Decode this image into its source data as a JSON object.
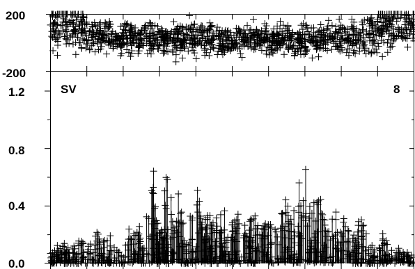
{
  "chart_data": [
    {
      "type": "scatter",
      "title": "",
      "xlabel": "",
      "ylabel": "",
      "ylim": [
        -200,
        200
      ],
      "ytick_labels": [
        "200",
        "-200"
      ],
      "yticks": [
        200,
        -200
      ],
      "xlim": [
        0,
        1000
      ],
      "xticks": [
        100,
        200,
        300,
        400,
        500,
        600,
        700,
        800,
        900
      ],
      "marker": "plus",
      "color": "#000000",
      "series": [
        {
          "x": [
            0,
            10,
            20,
            30,
            40,
            50,
            60,
            70,
            80,
            90,
            100,
            120,
            140,
            160,
            180,
            200,
            220,
            240,
            260,
            280,
            300,
            320,
            340,
            360,
            380,
            400,
            420,
            440,
            460,
            480,
            500,
            520,
            540,
            560,
            580,
            600,
            620,
            640,
            660,
            680,
            700,
            720,
            740,
            760,
            780,
            800,
            820,
            840,
            860,
            880,
            900,
            920,
            940,
            960,
            980,
            1000
          ],
          "y": [
            150,
            120,
            90,
            160,
            130,
            100,
            140,
            110,
            80,
            130,
            60,
            40,
            30,
            50,
            20,
            40,
            30,
            10,
            40,
            20,
            30,
            10,
            40,
            20,
            50,
            30,
            10,
            40,
            20,
            30,
            10,
            30,
            20,
            40,
            20,
            10,
            30,
            40,
            20,
            10,
            30,
            20,
            10,
            40,
            20,
            30,
            20,
            40,
            30,
            60,
            90,
            140,
            120,
            150,
            130,
            160
          ],
          "spread": [
            180,
            180,
            180,
            180,
            180,
            180,
            180,
            180,
            180,
            160,
            140,
            120,
            100,
            110,
            90,
            110,
            100,
            80,
            120,
            100,
            110,
            90,
            130,
            100,
            120,
            120,
            100,
            120,
            100,
            100,
            90,
            100,
            90,
            120,
            100,
            90,
            100,
            110,
            100,
            90,
            110,
            100,
            100,
            120,
            100,
            110,
            100,
            120,
            110,
            140,
            160,
            180,
            180,
            180,
            180,
            180
          ]
        }
      ]
    },
    {
      "type": "line",
      "title": "",
      "xlabel": "",
      "ylabel": "",
      "ylim": [
        0,
        1.3
      ],
      "yticks": [
        0.0,
        0.4,
        0.8,
        1.2
      ],
      "ytick_labels": [
        "0.0",
        "0.4",
        "0.8",
        "1.2"
      ],
      "xlim": [
        0,
        1000
      ],
      "xticks": [
        100,
        200,
        300,
        400,
        500,
        600,
        700,
        800,
        900
      ],
      "annotations": {
        "left": "SV",
        "right": "8"
      },
      "marker": "plus",
      "color": "#000000",
      "series": [
        {
          "x": [
            0,
            20,
            40,
            60,
            80,
            100,
            120,
            140,
            160,
            180,
            200,
            220,
            240,
            260,
            280,
            300,
            320,
            340,
            360,
            380,
            400,
            420,
            440,
            460,
            480,
            500,
            520,
            540,
            560,
            580,
            600,
            620,
            640,
            660,
            680,
            700,
            720,
            740,
            760,
            780,
            800,
            820,
            840,
            860,
            880,
            900,
            920,
            940,
            960,
            980,
            1000
          ],
          "y": [
            0.08,
            0.12,
            0.15,
            0.1,
            0.18,
            0.14,
            0.2,
            0.16,
            0.22,
            0.1,
            0.06,
            0.3,
            0.38,
            0.25,
            0.65,
            0.2,
            0.55,
            0.5,
            0.4,
            0.35,
            0.58,
            0.3,
            0.36,
            0.28,
            0.4,
            0.32,
            0.36,
            0.3,
            0.33,
            0.25,
            0.3,
            0.22,
            0.38,
            0.45,
            0.5,
            0.6,
            0.4,
            0.45,
            0.3,
            0.35,
            0.38,
            0.24,
            0.22,
            0.28,
            0.15,
            0.12,
            0.2,
            0.1,
            0.12,
            0.08,
            0.06
          ]
        }
      ]
    }
  ]
}
